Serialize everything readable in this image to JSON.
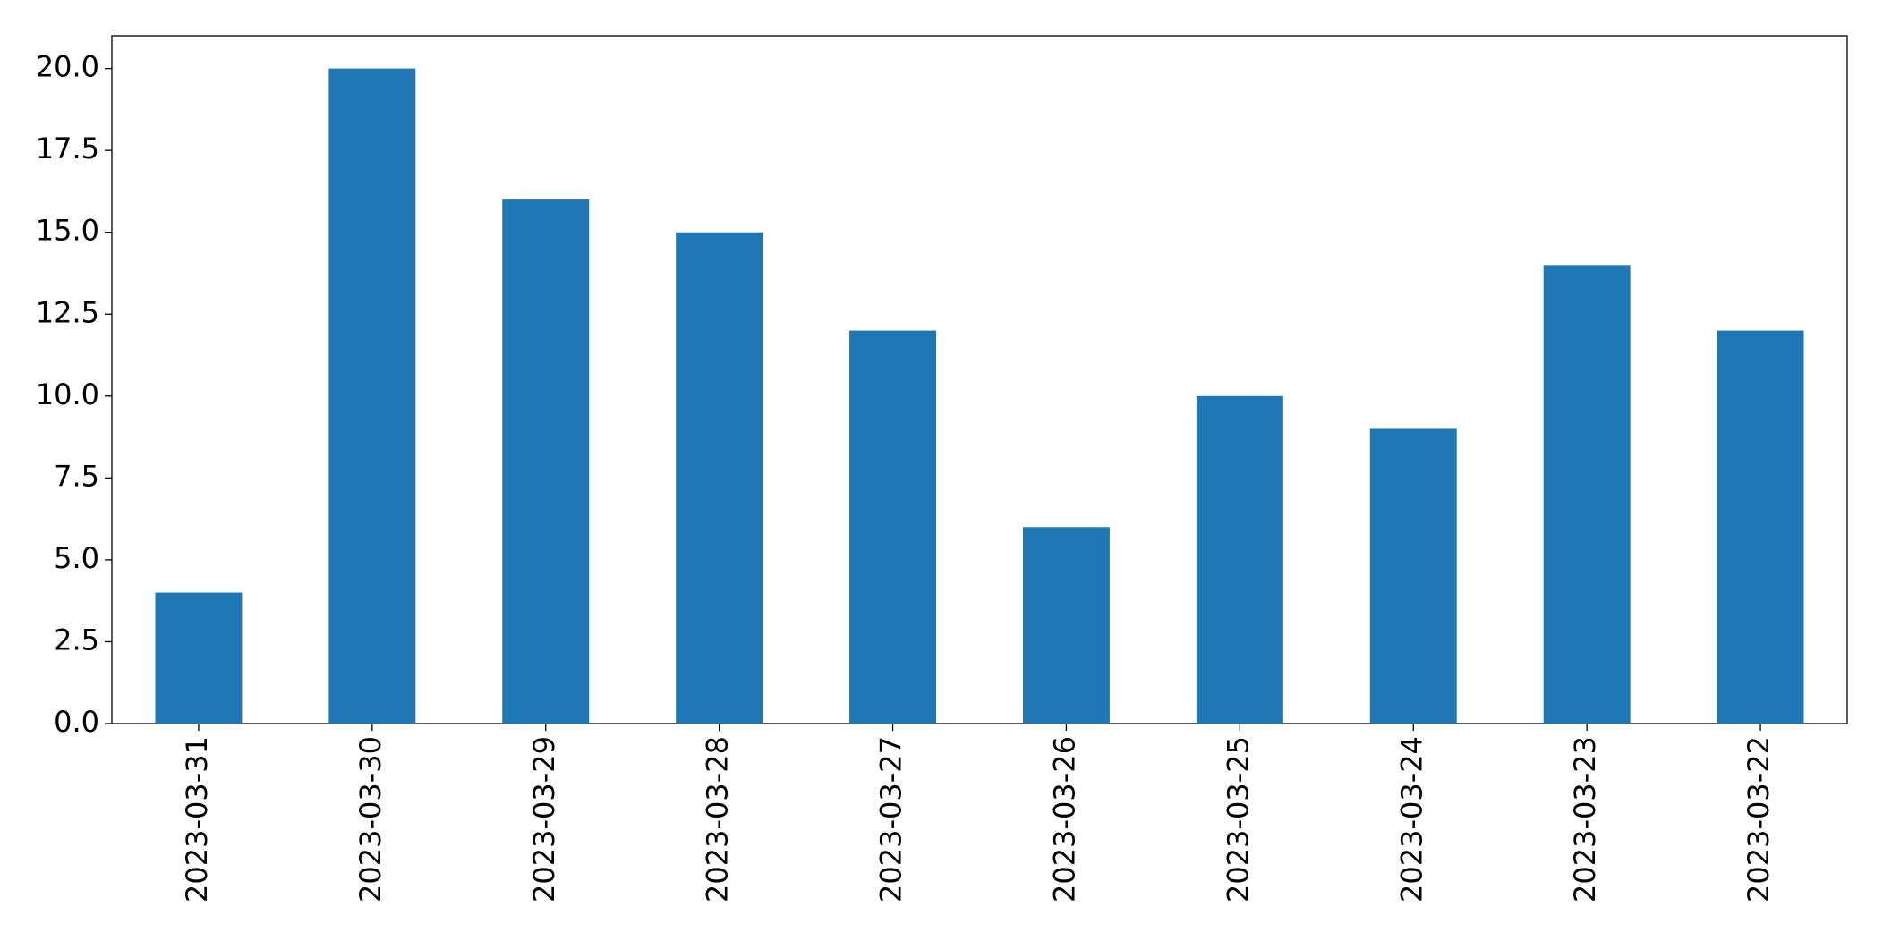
{
  "chart_data": {
    "type": "bar",
    "categories": [
      "2023-03-31",
      "2023-03-30",
      "2023-03-29",
      "2023-03-28",
      "2023-03-27",
      "2023-03-26",
      "2023-03-25",
      "2023-03-24",
      "2023-03-23",
      "2023-03-22"
    ],
    "values": [
      4,
      20,
      16,
      15,
      12,
      6,
      10,
      9,
      14,
      12
    ],
    "color": "#1f77b4",
    "ylim": [
      0,
      21
    ],
    "yticks": [
      {
        "value": 0,
        "label": "0.0"
      },
      {
        "value": 2.5,
        "label": "2.5"
      },
      {
        "value": 5,
        "label": "5.0"
      },
      {
        "value": 7.5,
        "label": "7.5"
      },
      {
        "value": 10,
        "label": "10.0"
      },
      {
        "value": 12.5,
        "label": "12.5"
      },
      {
        "value": 15,
        "label": "15.0"
      },
      {
        "value": 17.5,
        "label": "17.5"
      },
      {
        "value": 20,
        "label": "20.0"
      }
    ],
    "grid": false
  }
}
